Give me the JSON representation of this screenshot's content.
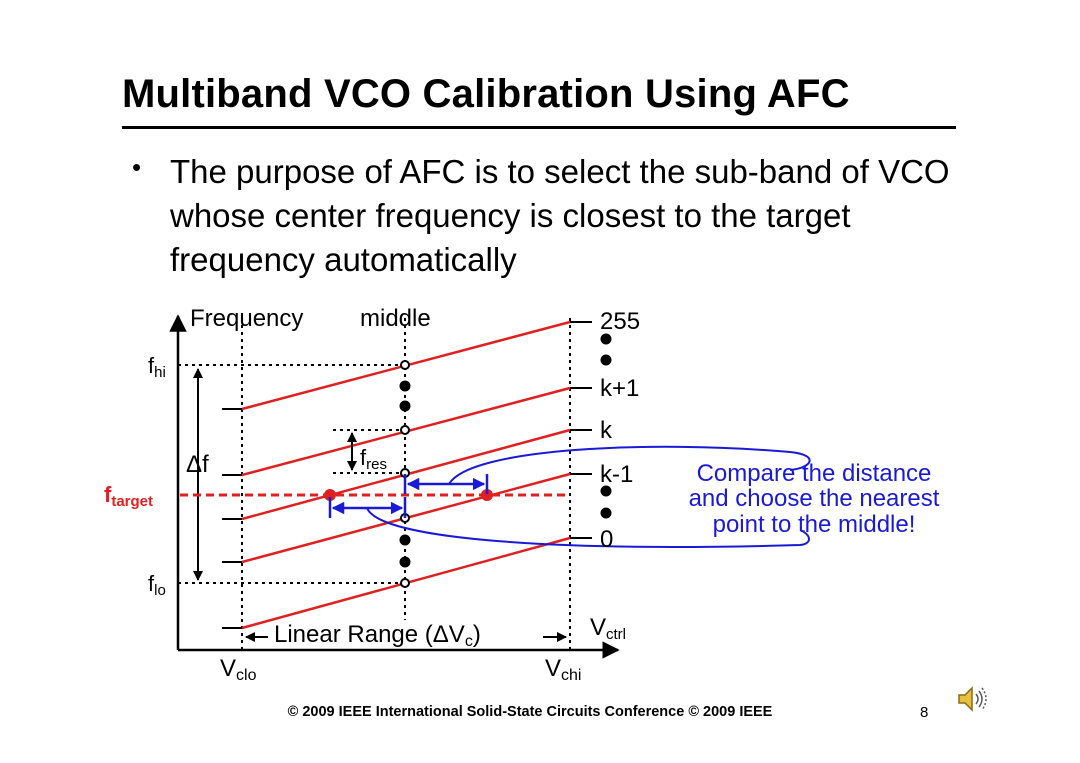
{
  "slide": {
    "title": "Multiband VCO Calibration Using AFC",
    "bullet": "The purpose of AFC is to select the sub-band of VCO whose center frequency is closest to the target frequency automatically"
  },
  "diagram": {
    "y_axis_label": "Frequency",
    "middle_label": "middle",
    "f_hi": {
      "base": "f",
      "sub": "hi"
    },
    "f_lo": {
      "base": "f",
      "sub": "lo"
    },
    "delta_f": "Δf",
    "f_res": {
      "base": "f",
      "sub": "res"
    },
    "f_target": {
      "base": "f",
      "sub": "target"
    },
    "v_clo": {
      "base": "V",
      "sub": "clo"
    },
    "v_chi": {
      "base": "V",
      "sub": "chi"
    },
    "v_ctrl": {
      "base": "V",
      "sub": "ctrl"
    },
    "linear_range": {
      "pre": "Linear Range (ΔV",
      "sub": "c",
      "post": ")"
    },
    "band_labels": {
      "top": "255",
      "k_plus_1": "k+1",
      "k": "k",
      "k_minus_1": "k-1",
      "bottom": "0"
    },
    "annotation": [
      "Compare the distance",
      "and choose the nearest",
      "point to the middle!"
    ],
    "colors": {
      "band_line": "#e02020",
      "target": "#e02020",
      "annotation": "#1a1ad6",
      "axis": "#000000"
    }
  },
  "footer": {
    "copyright": "© 2009 IEEE International Solid-State Circuits Conference © 2009 IEEE",
    "page_number": "8"
  }
}
